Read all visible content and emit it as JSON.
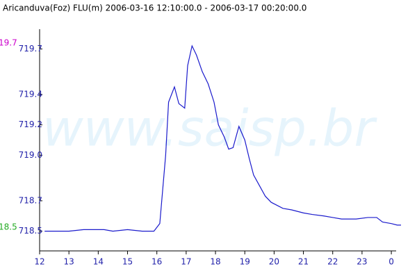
{
  "chart_data": {
    "type": "line",
    "title": "Aricanduva(Foz) FLU(m) 2006-03-16 12:10:00.0 - 2006-03-17 00:20:00.0",
    "watermark": "www.saisp.br",
    "max_label": "19.7",
    "min_label": "18.5",
    "x": [
      12.17,
      12.5,
      13.0,
      13.5,
      14.2,
      14.5,
      15.0,
      15.5,
      15.9,
      16.1,
      16.3,
      16.4,
      16.6,
      16.75,
      16.95,
      17.05,
      17.2,
      17.35,
      17.55,
      17.75,
      17.95,
      18.1,
      18.3,
      18.45,
      18.6,
      18.8,
      19.0,
      19.15,
      19.3,
      19.5,
      19.7,
      19.9,
      20.1,
      20.3,
      20.6,
      21.0,
      21.3,
      21.7,
      22.0,
      22.3,
      22.8,
      23.2,
      23.5,
      23.7,
      24.0,
      24.2,
      24.33
    ],
    "series": [
      {
        "name": "FLU",
        "color": "#1a1acc",
        "values": [
          718.5,
          718.5,
          718.5,
          718.51,
          718.51,
          718.5,
          718.51,
          718.5,
          718.5,
          718.55,
          719.0,
          719.35,
          719.45,
          719.34,
          719.31,
          719.59,
          719.72,
          719.66,
          719.55,
          719.47,
          719.35,
          719.2,
          719.12,
          719.04,
          719.05,
          719.19,
          719.1,
          718.98,
          718.87,
          718.8,
          718.73,
          718.69,
          718.67,
          718.65,
          718.64,
          718.62,
          718.61,
          718.6,
          718.59,
          718.58,
          718.58,
          718.59,
          718.59,
          718.56,
          718.55,
          718.54,
          718.54
        ]
      }
    ],
    "xlim": [
      12,
      24.33
    ],
    "xticks": [
      12,
      13,
      14,
      15,
      16,
      17,
      18,
      19,
      20,
      21,
      22,
      23,
      {
        "value": 24,
        "label": "0"
      }
    ],
    "ylim": [
      718.37,
      719.83
    ],
    "yticks": [
      {
        "value": 718.5,
        "label": "718.5"
      },
      {
        "value": 718.7,
        "label": "718.7"
      },
      {
        "value": 719.0,
        "label": "719.0"
      },
      {
        "value": 719.2,
        "label": "719.2"
      },
      {
        "value": 719.4,
        "label": "719.4"
      },
      {
        "value": 719.7,
        "label": "719.7"
      }
    ],
    "grid": false
  }
}
